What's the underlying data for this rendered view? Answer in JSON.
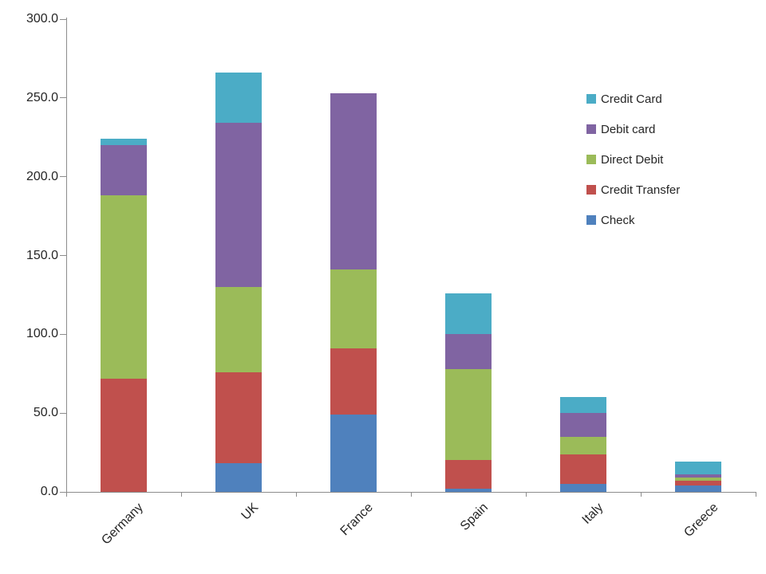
{
  "chart_data": {
    "type": "bar",
    "stacked": true,
    "title": "",
    "xlabel": "",
    "ylabel": "",
    "categories": [
      "Germany",
      "UK",
      "France",
      "Spain",
      "Italy",
      "Greece"
    ],
    "series": [
      {
        "name": "Check",
        "color": "#4F81BD",
        "values": [
          0,
          18,
          49,
          2,
          5,
          4
        ]
      },
      {
        "name": "Credit Transfer",
        "color": "#C0504D",
        "values": [
          72,
          58,
          42,
          18,
          19,
          3
        ]
      },
      {
        "name": "Direct Debit",
        "color": "#9BBB59",
        "values": [
          116,
          54,
          50,
          58,
          11,
          2
        ]
      },
      {
        "name": "Debit card",
        "color": "#8064A2",
        "values": [
          32,
          104,
          112,
          22,
          15,
          2
        ]
      },
      {
        "name": "Credit Card",
        "color": "#4BACC6",
        "values": [
          4,
          32,
          0,
          26,
          10,
          8
        ]
      }
    ],
    "ylim": [
      0,
      300
    ],
    "ytick_interval": 50,
    "ytick_labels": [
      "0.0",
      "50.0",
      "100.0",
      "150.0",
      "200.0",
      "250.0",
      "300.0"
    ],
    "grid": false,
    "legend": {
      "position": "right",
      "items_top_to_bottom": [
        "Credit Card",
        "Debit card",
        "Direct Debit",
        "Credit Transfer",
        "Check"
      ]
    },
    "axis_color": "#8C8C8C",
    "text_color": "#262626",
    "background_color": "#FFFFFF",
    "x_label_rotation_deg": 45
  }
}
